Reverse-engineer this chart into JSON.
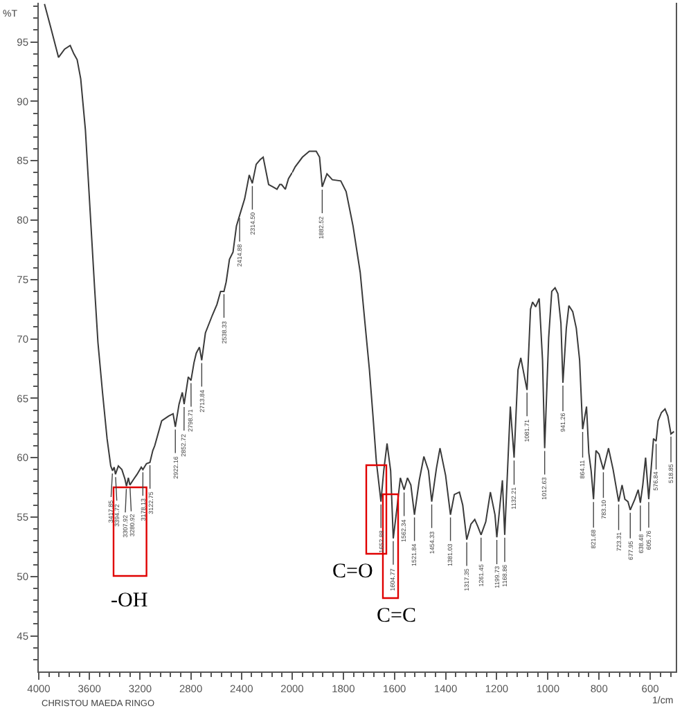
{
  "chart_data": [
    {
      "type": "line",
      "ylabel": "%T",
      "color": "#3a3a3a",
      "x": [
        3955,
        3905,
        3844,
        3796,
        3752,
        3723,
        3697,
        3669,
        3632,
        3596,
        3560,
        3533,
        3497,
        3461,
        3432,
        3417.85,
        3405,
        3394.72,
        3372,
        3344,
        3320,
        3307.92,
        3293,
        3280.92,
        3250,
        3224,
        3191,
        3178.13,
        3150,
        3122.75,
        3100,
        3085,
        3030,
        2976,
        2940,
        2922.16,
        2893,
        2867,
        2852.72,
        2820,
        2798.71,
        2775,
        2757,
        2732,
        2713.84,
        2685,
        2630,
        2594,
        2565,
        2538.33,
        2521,
        2495,
        2467,
        2440,
        2414.88,
        2375,
        2339,
        2314.5,
        2284,
        2252,
        2229,
        2186,
        2153,
        2120,
        2098,
        2084,
        2054,
        2029,
        2000
      ],
      "values": [
        98.2,
        96.2,
        93.7,
        94.4,
        94.7,
        94.0,
        93.5,
        91.9,
        87.6,
        81.0,
        74.4,
        69.7,
        65.5,
        61.6,
        59.3,
        58.9,
        59.2,
        58.6,
        59.3,
        59.0,
        58.2,
        57.6,
        58.3,
        57.7,
        58.2,
        58.6,
        59.2,
        59.0,
        59.5,
        59.6,
        60.6,
        61.0,
        63.1,
        63.5,
        63.7,
        62.6,
        64.5,
        65.5,
        64.5,
        66.8,
        66.5,
        68.0,
        68.8,
        69.3,
        68.2,
        70.5,
        72.0,
        72.9,
        74.0,
        74.0,
        74.8,
        76.7,
        77.3,
        79.5,
        80.4,
        81.8,
        83.8,
        83.1,
        84.7,
        85.1,
        85.3,
        83.0,
        82.8,
        82.6,
        83.0,
        83.0,
        82.6,
        83.5,
        84.0
      ],
      "xlim": [
        4000,
        2000
      ],
      "xticks": [
        4000,
        {
          "value": 3920,
          "label": null
        },
        {
          "value": 3840,
          "label": null
        },
        {
          "value": 3760,
          "label": null
        },
        {
          "value": 3680,
          "label": null
        },
        3600,
        {
          "value": 3520,
          "label": null
        },
        {
          "value": 3440,
          "label": null
        },
        {
          "value": 3360,
          "label": null
        },
        {
          "value": 3280,
          "label": null
        },
        3200,
        {
          "value": 3120,
          "label": null
        },
        {
          "value": 3040,
          "label": null
        },
        {
          "value": 2960,
          "label": null
        },
        {
          "value": 2880,
          "label": null
        },
        2800,
        {
          "value": 2720,
          "label": null
        },
        {
          "value": 2640,
          "label": null
        },
        {
          "value": 2560,
          "label": null
        },
        {
          "value": 2480,
          "label": null
        },
        2400,
        {
          "value": 2320,
          "label": null
        },
        {
          "value": 2240,
          "label": null
        },
        {
          "value": 2160,
          "label": null
        },
        {
          "value": 2080,
          "label": null
        },
        2000
      ],
      "ylim": [
        42,
        98.3
      ],
      "yticks": [
        {
          "value": 43,
          "label": null
        },
        {
          "value": 44,
          "label": null
        },
        45,
        {
          "value": 46,
          "label": null
        },
        {
          "value": 47,
          "label": null
        },
        {
          "value": 48,
          "label": null
        },
        {
          "value": 49,
          "label": null
        },
        50,
        {
          "value": 51,
          "label": null
        },
        {
          "value": 52,
          "label": null
        },
        {
          "value": 53,
          "label": null
        },
        {
          "value": 54,
          "label": null
        },
        55,
        {
          "value": 56,
          "label": null
        },
        {
          "value": 57,
          "label": null
        },
        {
          "value": 58,
          "label": null
        },
        {
          "value": 59,
          "label": null
        },
        60,
        {
          "value": 61,
          "label": null
        },
        {
          "value": 62,
          "label": null
        },
        {
          "value": 63,
          "label": null
        },
        {
          "value": 64,
          "label": null
        },
        65,
        {
          "value": 66,
          "label": null
        },
        {
          "value": 67,
          "label": null
        },
        {
          "value": 68,
          "label": null
        },
        {
          "value": 69,
          "label": null
        },
        70,
        {
          "value": 71,
          "label": null
        },
        {
          "value": 72,
          "label": null
        },
        {
          "value": 73,
          "label": null
        },
        {
          "value": 74,
          "label": null
        },
        75,
        {
          "value": 76,
          "label": null
        },
        {
          "value": 77,
          "label": null
        },
        {
          "value": 78,
          "label": null
        },
        {
          "value": 79,
          "label": null
        },
        80,
        {
          "value": 81,
          "label": null
        },
        {
          "value": 82,
          "label": null
        },
        {
          "value": 83,
          "label": null
        },
        {
          "value": 84,
          "label": null
        },
        85,
        {
          "value": 86,
          "label": null
        },
        {
          "value": 87,
          "label": null
        },
        {
          "value": 88,
          "label": null
        },
        {
          "value": 89,
          "label": null
        },
        90,
        {
          "value": 91,
          "label": null
        },
        {
          "value": 92,
          "label": null
        },
        {
          "value": 93,
          "label": null
        },
        {
          "value": 94,
          "label": null
        },
        95,
        {
          "value": 96,
          "label": null
        },
        {
          "value": 97,
          "label": null
        },
        {
          "value": 98,
          "label": null
        }
      ],
      "annotations": [
        {
          "text": "3417.85",
          "x": 3417.85,
          "y": 58.9
        },
        {
          "text": "3394.72",
          "x": 3394.72,
          "y": 58.6
        },
        {
          "text": "3307.92",
          "x": 3307.92,
          "y": 57.6
        },
        {
          "text": "3280.92",
          "x": 3280.92,
          "y": 57.7
        },
        {
          "text": "3178.13",
          "x": 3178.13,
          "y": 59.0
        },
        {
          "text": "3122.75",
          "x": 3122.75,
          "y": 59.6
        },
        {
          "text": "2922.16",
          "x": 2922.16,
          "y": 62.6
        },
        {
          "text": "2852.72",
          "x": 2852.72,
          "y": 64.5
        },
        {
          "text": "2798.71",
          "x": 2798.71,
          "y": 66.5
        },
        {
          "text": "2713.84",
          "x": 2713.84,
          "y": 68.2
        },
        {
          "text": "2538.33",
          "x": 2538.33,
          "y": 74.0
        },
        {
          "text": "2414.88",
          "x": 2414.88,
          "y": 80.4
        },
        {
          "text": "2314.50",
          "x": 2314.5,
          "y": 83.1
        },
        "-OH",
        "CHRISTOU MAEDA RINGO"
      ]
    },
    {
      "type": "line",
      "xlabel": "1/cm",
      "color": "#3a3a3a",
      "tick_labels": "x",
      "x": [
        2000,
        1988,
        1960,
        1933,
        1906,
        1893,
        1882.52,
        1864,
        1843,
        1810,
        1789,
        1762,
        1734,
        1717,
        1698,
        1684,
        1671,
        1652.88,
        1642,
        1629,
        1615,
        1604.77,
        1590,
        1577,
        1562.34,
        1549,
        1536,
        1521.84,
        1503,
        1485,
        1467,
        1454.33,
        1436,
        1422,
        1400,
        1381.03,
        1366,
        1346,
        1333,
        1317.35,
        1301,
        1286,
        1274,
        1261.45,
        1243,
        1225,
        1207,
        1199.73,
        1178,
        1168.86,
        1147,
        1132.21,
        1117,
        1106,
        1097,
        1081.71,
        1068,
        1060,
        1048,
        1034,
        1021,
        1012.63,
        997,
        985,
        972,
        961,
        949,
        941.26,
        928,
        918,
        903,
        889,
        876,
        864.11,
        849,
        840,
        831,
        821.68,
        812,
        800,
        783.1,
        763,
        745,
        723.31,
        710,
        699,
        687,
        677.95,
        660,
        647,
        638.48,
        629,
        618,
        605.76,
        587,
        576.84,
        569,
        556,
        542,
        531,
        518.85,
        507
      ],
      "values": [
        84.0,
        84.5,
        85.3,
        85.8,
        85.8,
        85.3,
        82.8,
        83.9,
        83.4,
        83.3,
        82.4,
        79.5,
        75.6,
        71.7,
        67.4,
        63.5,
        59.7,
        56.3,
        58.9,
        61.2,
        58.9,
        53.2,
        55.8,
        58.3,
        57.3,
        58.3,
        57.7,
        55.2,
        58.1,
        60.1,
        58.9,
        56.3,
        59.1,
        60.8,
        58.5,
        55.2,
        56.9,
        57.1,
        56.0,
        53.1,
        54.4,
        54.8,
        54.2,
        53.5,
        54.6,
        57.1,
        55.2,
        53.3,
        58.1,
        53.5,
        64.3,
        60.0,
        67.4,
        68.4,
        67.4,
        65.7,
        72.5,
        73.1,
        72.7,
        73.4,
        68.2,
        60.8,
        70.1,
        74.0,
        74.3,
        73.8,
        71.3,
        66.3,
        70.9,
        72.8,
        72.3,
        70.9,
        68.2,
        62.4,
        64.3,
        60.4,
        58.9,
        56.5,
        60.6,
        60.3,
        59.0,
        60.8,
        59.0,
        56.3,
        57.7,
        56.5,
        56.3,
        55.6,
        56.5,
        57.3,
        56.2,
        57.7,
        60.0,
        56.5,
        61.6,
        61.4,
        63.1,
        63.8,
        64.1,
        63.5,
        62.0,
        62.2
      ],
      "xlim": [
        2000,
        500
      ],
      "xticks": [
        {
          "value": 1960,
          "label": null
        },
        {
          "value": 1920,
          "label": null
        },
        {
          "value": 1880,
          "label": null
        },
        {
          "value": 1840,
          "label": null
        },
        1800,
        {
          "value": 1760,
          "label": null
        },
        {
          "value": 1720,
          "label": null
        },
        {
          "value": 1680,
          "label": null
        },
        {
          "value": 1640,
          "label": null
        },
        1600,
        {
          "value": 1560,
          "label": null
        },
        {
          "value": 1520,
          "label": null
        },
        {
          "value": 1480,
          "label": null
        },
        {
          "value": 1440,
          "label": null
        },
        1400,
        {
          "value": 1360,
          "label": null
        },
        {
          "value": 1320,
          "label": null
        },
        {
          "value": 1280,
          "label": null
        },
        {
          "value": 1240,
          "label": null
        },
        1200,
        {
          "value": 1160,
          "label": null
        },
        {
          "value": 1120,
          "label": null
        },
        {
          "value": 1080,
          "label": null
        },
        {
          "value": 1040,
          "label": null
        },
        1000,
        {
          "value": 960,
          "label": null
        },
        {
          "value": 920,
          "label": null
        },
        {
          "value": 880,
          "label": null
        },
        {
          "value": 840,
          "label": null
        },
        800,
        {
          "value": 760,
          "label": null
        },
        {
          "value": 720,
          "label": null
        },
        {
          "value": 680,
          "label": null
        },
        {
          "value": 640,
          "label": null
        },
        600,
        {
          "value": 560,
          "label": null
        },
        {
          "value": 520,
          "label": null
        }
      ],
      "ylim": [
        42,
        98.3
      ],
      "annotations": [
        {
          "text": "1882.52",
          "x": 1882.52,
          "y": 82.8
        },
        {
          "text": "1652.88",
          "x": 1652.88,
          "y": 56.3
        },
        {
          "text": "1604.77",
          "x": 1604.77,
          "y": 53.2
        },
        {
          "text": "1562.34",
          "x": 1562.34,
          "y": 57.3
        },
        {
          "text": "1521.84",
          "x": 1521.84,
          "y": 55.2
        },
        {
          "text": "1454.33",
          "x": 1454.33,
          "y": 56.3
        },
        {
          "text": "1381.03",
          "x": 1381.03,
          "y": 55.2
        },
        {
          "text": "1317.35",
          "x": 1317.35,
          "y": 53.1
        },
        {
          "text": "1261.45",
          "x": 1261.45,
          "y": 53.5
        },
        {
          "text": "1199.73",
          "x": 1199.73,
          "y": 53.3
        },
        {
          "text": "1168.86",
          "x": 1168.86,
          "y": 53.5
        },
        {
          "text": "1132.21",
          "x": 1132.21,
          "y": 60.0
        },
        {
          "text": "1081.71",
          "x": 1081.71,
          "y": 65.7
        },
        {
          "text": "1012.63",
          "x": 1012.63,
          "y": 60.8
        },
        {
          "text": "941.26",
          "x": 941.26,
          "y": 66.3
        },
        {
          "text": "864.11",
          "x": 864.11,
          "y": 62.4
        },
        {
          "text": "821.68",
          "x": 821.68,
          "y": 56.5
        },
        {
          "text": "783.10",
          "x": 783.1,
          "y": 59.0
        },
        {
          "text": "723.31",
          "x": 723.31,
          "y": 56.3
        },
        {
          "text": "677.95",
          "x": 677.95,
          "y": 55.6
        },
        {
          "text": "638.48",
          "x": 638.48,
          "y": 56.2
        },
        {
          "text": "605.76",
          "x": 605.76,
          "y": 56.5
        },
        {
          "text": "576.84",
          "x": 576.84,
          "y": 61.4
        },
        {
          "text": "518.85",
          "x": 518.85,
          "y": 62.0
        },
        "C=O",
        "C=C"
      ]
    }
  ]
}
